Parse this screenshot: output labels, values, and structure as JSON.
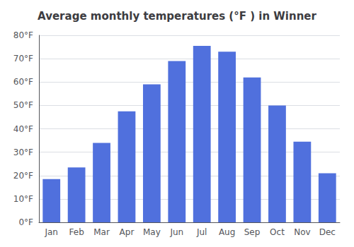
{
  "chart_data": {
    "type": "bar",
    "title": "Average monthly temperatures (°F ) in Winner",
    "categories": [
      "Jan",
      "Feb",
      "Mar",
      "Apr",
      "May",
      "Jun",
      "Jul",
      "Aug",
      "Sep",
      "Oct",
      "Nov",
      "Dec"
    ],
    "values": [
      18.5,
      23.5,
      34.0,
      47.5,
      59.0,
      69.0,
      75.5,
      73.0,
      62.0,
      50.0,
      34.5,
      21.0
    ],
    "ylim": [
      0,
      80
    ],
    "yticks": [
      {
        "value": 0,
        "label": "0°F"
      },
      {
        "value": 10,
        "label": "10°F"
      },
      {
        "value": 20,
        "label": "20°F"
      },
      {
        "value": 30,
        "label": "30°F"
      },
      {
        "value": 40,
        "label": "40°F"
      },
      {
        "value": 50,
        "label": "50°F"
      },
      {
        "value": 60,
        "label": "60°F"
      },
      {
        "value": 70,
        "label": "70°F"
      },
      {
        "value": 80,
        "label": "80°F"
      }
    ],
    "grid": true
  }
}
